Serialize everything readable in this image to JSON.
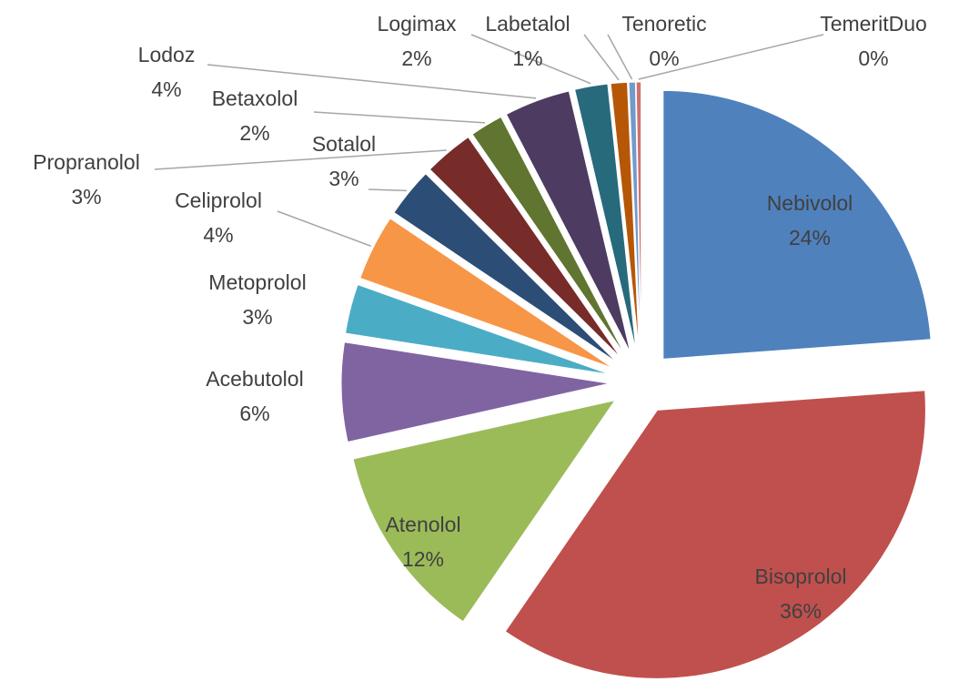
{
  "chart_data": {
    "type": "pie",
    "categories": [
      "Nebivolol",
      "Bisoprolol",
      "Atenolol",
      "Acebutolol",
      "Metoprolol",
      "Celiprolol",
      "Sotalol",
      "Propranolol",
      "Betaxolol",
      "Lodoz",
      "Logimax",
      "Labetalol",
      "Tenoretic",
      "TemeritDuo"
    ],
    "values": [
      24,
      36,
      12,
      6,
      3,
      4,
      3,
      3,
      2,
      4,
      2,
      1,
      0.4,
      0.3
    ],
    "value_labels": [
      "24%",
      "36%",
      "12%",
      "6%",
      "3%",
      "4%",
      "3%",
      "3%",
      "2%",
      "4%",
      "2%",
      "1%",
      "0%",
      "0%"
    ],
    "colors": [
      "#4f81bd",
      "#c0504d",
      "#9bbb59",
      "#8064a2",
      "#4bacc6",
      "#f79646",
      "#2c4d75",
      "#772c2a",
      "#5f7530",
      "#4d3b62",
      "#276a7c",
      "#b65708",
      "#729aca",
      "#cd7371"
    ]
  }
}
